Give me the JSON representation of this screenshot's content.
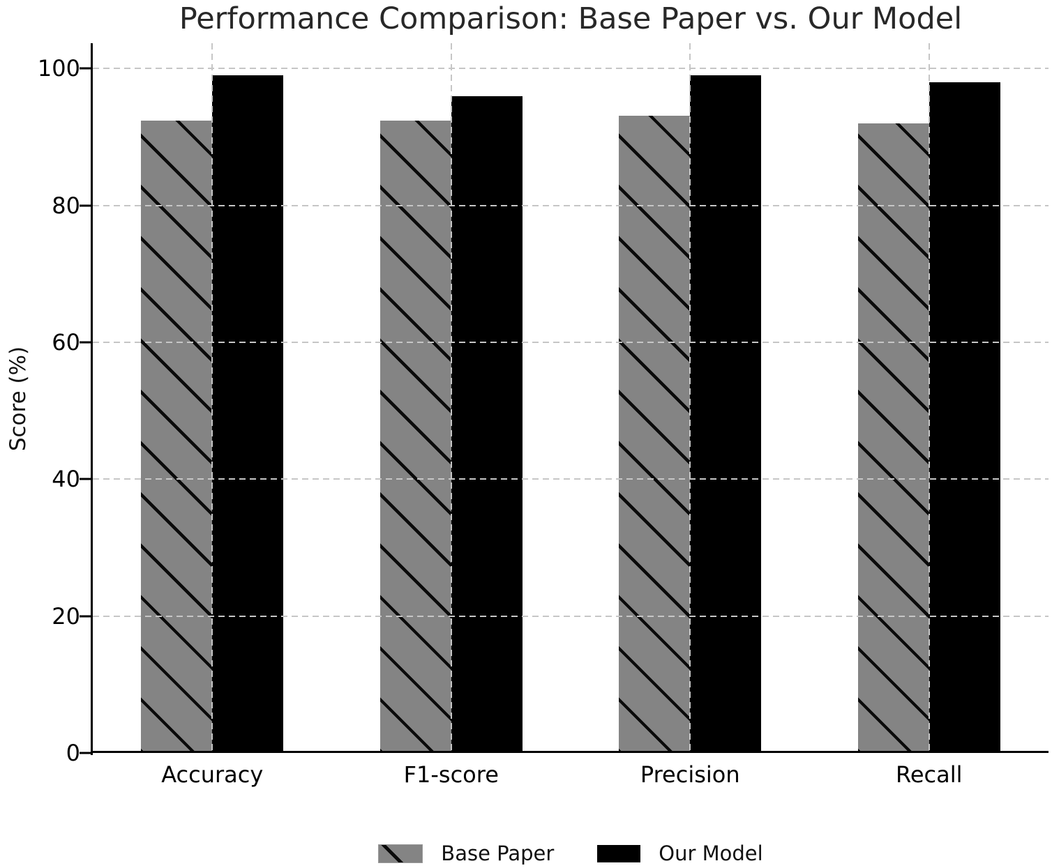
{
  "chart_data": {
    "type": "bar",
    "title": "Performance Comparison: Base Paper vs. Our Model",
    "xlabel": "",
    "ylabel": "Score (%)",
    "categories": [
      "Accuracy",
      "F1-score",
      "Precision",
      "Recall"
    ],
    "series": [
      {
        "name": "Base Paper",
        "values": [
          92.4,
          92.4,
          93.1,
          92.0
        ],
        "color": "#848484",
        "hatch": "\\"
      },
      {
        "name": "Our Model",
        "values": [
          99.0,
          96.0,
          99.0,
          98.0
        ],
        "color": "#000000",
        "hatch": ""
      }
    ],
    "yticks": [
      0,
      20,
      40,
      60,
      80,
      100
    ],
    "ylim": [
      0,
      103.7
    ],
    "grid": true,
    "grid_style": "dashed",
    "grid_color": "#c6c6c6",
    "legend_position": "bottom-center"
  }
}
